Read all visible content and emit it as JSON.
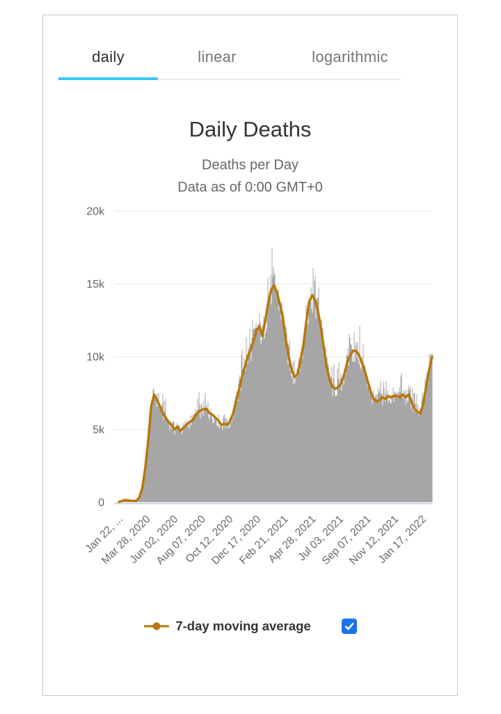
{
  "tabs": {
    "items": [
      {
        "label": "daily",
        "active": true
      },
      {
        "label": "linear",
        "active": false
      },
      {
        "label": "logarithmic",
        "active": false
      }
    ]
  },
  "header": {
    "title": "Daily Deaths",
    "subtitle1": "Deaths per Day",
    "subtitle2": "Data as of 0:00 GMT+0"
  },
  "legend": {
    "label": "7-day moving average",
    "checked": true
  },
  "colors": {
    "tab_underline": "#3cc8f5",
    "checkbox_blue": "#1a73e8",
    "bar": "#a6a6a6",
    "line": "#b8770d",
    "grid": "#e6e6e6",
    "axis_line": "#ccd6eb",
    "axis_text": "#666666"
  },
  "chart_data": {
    "type": "bar",
    "title": "Daily Deaths",
    "subtitle": [
      "Deaths per Day",
      "Data as of 0:00 GMT+0"
    ],
    "ylabel": "",
    "xlabel": "",
    "y_ticks": [
      0,
      5000,
      10000,
      15000,
      20000
    ],
    "y_tick_labels": [
      "0",
      "5k",
      "10k",
      "15k",
      "20k"
    ],
    "ylim": [
      0,
      20000
    ],
    "grid": "horizontal",
    "x_tick_labels": [
      "Jan 22, ...",
      "Mar 28, 2020",
      "Jun 02, 2020",
      "Aug 07, 2020",
      "Oct 12, 2020",
      "Dec 17, 2020",
      "Feb 21, 2021",
      "Apr 28, 2021",
      "Jul 03, 2021",
      "Sep 07, 2021",
      "Nov 12, 2021",
      "Jan 17, 2022"
    ],
    "x_tick_interval_days": 66,
    "days_total": 749,
    "sample_interval_days": 7,
    "series": [
      {
        "name": "Daily Deaths",
        "type": "bar"
      },
      {
        "name": "7-day moving average",
        "type": "line",
        "legend_position": "bottom",
        "visible": true
      }
    ],
    "avg_weekly_values": [
      20,
      80,
      150,
      130,
      100,
      80,
      110,
      350,
      1000,
      2400,
      4300,
      6600,
      7400,
      7000,
      6600,
      6100,
      5800,
      5500,
      5300,
      5000,
      5200,
      4900,
      5100,
      5300,
      5500,
      5600,
      5900,
      6200,
      6300,
      6400,
      6400,
      6100,
      6000,
      5800,
      5600,
      5300,
      5400,
      5300,
      5600,
      6100,
      6900,
      7700,
      8600,
      9300,
      10000,
      10500,
      11100,
      11800,
      12100,
      11400,
      12500,
      13700,
      14600,
      14900,
      14400,
      13600,
      12700,
      11200,
      10000,
      9100,
      8600,
      8800,
      9700,
      10800,
      12400,
      13800,
      14200,
      13900,
      13100,
      12000,
      10600,
      9300,
      8400,
      7900,
      7800,
      7900,
      8200,
      8800,
      9600,
      10100,
      10400,
      10400,
      10100,
      9600,
      9000,
      8300,
      7600,
      7100,
      6900,
      7000,
      7200,
      7100,
      7300,
      7200,
      7300,
      7300,
      7200,
      7400,
      7200,
      7400,
      6900,
      6400,
      6200,
      6100,
      6800,
      8000,
      9100,
      10000
    ],
    "bar_texture": {
      "jitter": 0.18,
      "spike_chance": 0.16,
      "spike_boost": 0.13
    }
  }
}
